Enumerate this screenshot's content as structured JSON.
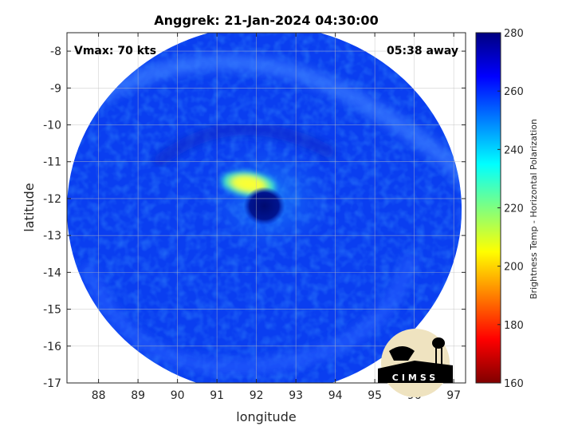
{
  "chart_data": {
    "type": "heatmap",
    "title": "Anggrek: 21-Jan-2024 04:30:00",
    "xlabel": "longitude",
    "ylabel": "latitude",
    "xlim": [
      87.2,
      97.3
    ],
    "ylim": [
      -17.0,
      -7.5
    ],
    "xticks": [
      88,
      89,
      90,
      91,
      92,
      93,
      94,
      95,
      96,
      97
    ],
    "yticks": [
      -8,
      -9,
      -10,
      -11,
      -12,
      -13,
      -14,
      -15,
      -16,
      -17
    ],
    "grid": true,
    "annotations": {
      "top_left": "Vmax: 70 kts",
      "top_right": "05:38 away"
    },
    "colorbar": {
      "label": "Brightness Temp - Horizontal Polarization",
      "range": [
        160,
        280
      ],
      "ticks": [
        160,
        180,
        200,
        220,
        240,
        260,
        280
      ],
      "colormap": "jet"
    },
    "swath": {
      "center_lon": 92.2,
      "center_lat": -12.3,
      "lon_radius": 5.0,
      "lat_radius": 5.0
    },
    "features": [
      {
        "kind": "background",
        "value": 262
      },
      {
        "kind": "warm_rainband_arc",
        "value": 248
      },
      {
        "kind": "eyewall_warm_core",
        "lon": 91.8,
        "lat": -11.6,
        "value": 205
      },
      {
        "kind": "eyewall_ring",
        "lon": 92.3,
        "lat": -12.0,
        "value": 245
      },
      {
        "kind": "eye_cold",
        "lon": 92.2,
        "lat": -12.2,
        "value": 272
      }
    ]
  },
  "logo": {
    "text": "CIMSS"
  }
}
